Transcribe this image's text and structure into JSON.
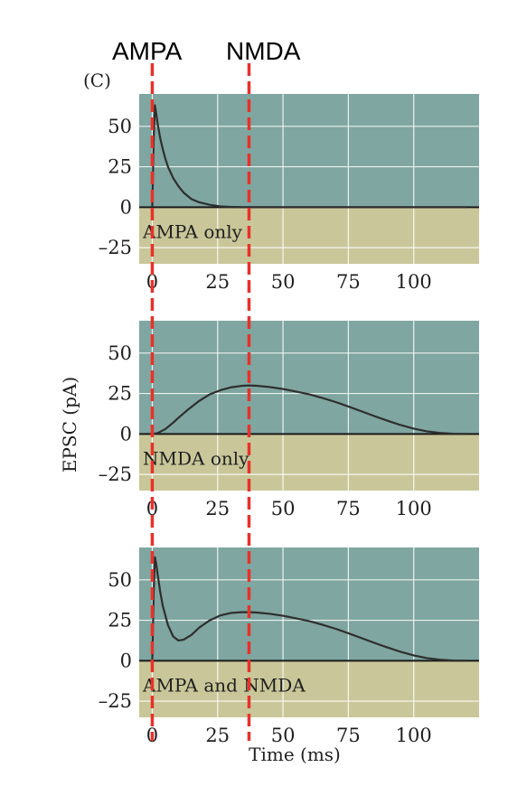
{
  "figure_label": "(C)",
  "top_labels": {
    "ampa": "AMPA",
    "nmda": "NMDA"
  },
  "y_axis_label": "EPSC (pA)",
  "x_axis_label": "Time (ms)",
  "colors": {
    "upper_bg": "#7fa6a0",
    "lower_bg": "#c9c799",
    "trace": "#2e2e2e",
    "grid": "#ffffff",
    "marker": "#e8312a"
  },
  "marker_lines_ms": [
    0,
    37
  ],
  "chart_data": [
    {
      "type": "line",
      "panel_label": "AMPA only",
      "x_ticks": [
        "0",
        "25",
        "50",
        "75",
        "100"
      ],
      "y_ticks": [
        "50",
        "25",
        "0",
        "–25"
      ],
      "xlim": [
        -5,
        125
      ],
      "ylim": [
        -35,
        70
      ],
      "x": [
        0,
        0.5,
        1,
        1.5,
        2,
        3,
        4,
        5,
        6,
        8,
        10,
        12,
        15,
        18,
        22,
        26,
        30,
        35,
        40,
        50,
        60,
        80,
        100,
        120
      ],
      "y": [
        0,
        40,
        63,
        58,
        52,
        43,
        36,
        30,
        25,
        18,
        13,
        9,
        5,
        3,
        1.5,
        0.5,
        0.2,
        0,
        0,
        0,
        0,
        0,
        0,
        0
      ]
    },
    {
      "type": "line",
      "panel_label": "NMDA only",
      "x_ticks": [
        "0",
        "25",
        "50",
        "75",
        "100"
      ],
      "y_ticks": [
        "50",
        "25",
        "0",
        "–25"
      ],
      "xlim": [
        -5,
        125
      ],
      "ylim": [
        -35,
        70
      ],
      "x": [
        0,
        2,
        5,
        8,
        10,
        14,
        18,
        22,
        26,
        30,
        34,
        37,
        40,
        45,
        50,
        55,
        60,
        65,
        70,
        75,
        80,
        85,
        90,
        95,
        100,
        105,
        110,
        115,
        120
      ],
      "y": [
        0,
        0.5,
        3,
        7,
        10,
        15.5,
        20.5,
        24.5,
        27,
        28.8,
        29.7,
        30,
        29.8,
        29,
        27.8,
        26.2,
        24.5,
        22.3,
        19.8,
        17,
        14,
        11,
        8.2,
        5.5,
        3.3,
        1.6,
        0.6,
        0.1,
        0
      ]
    },
    {
      "type": "line",
      "panel_label": "AMPA and NMDA",
      "x_ticks": [
        "0",
        "25",
        "50",
        "75",
        "100"
      ],
      "y_ticks": [
        "50",
        "25",
        "0",
        "–25"
      ],
      "xlim": [
        -5,
        125
      ],
      "ylim": [
        -35,
        70
      ],
      "x": [
        0,
        0.5,
        1,
        1.5,
        2,
        3,
        4,
        6,
        8,
        10,
        12,
        15,
        18,
        22,
        26,
        30,
        34,
        37,
        40,
        45,
        50,
        55,
        60,
        65,
        70,
        75,
        80,
        85,
        90,
        95,
        100,
        105,
        110,
        115,
        120
      ],
      "y": [
        0,
        40,
        64,
        60,
        54,
        43,
        34,
        22,
        15,
        12.5,
        13,
        16,
        20.5,
        25,
        28,
        29.5,
        30,
        30,
        29.8,
        29,
        27.8,
        26.2,
        24.5,
        22.3,
        19.8,
        17,
        14,
        11,
        8.2,
        5.5,
        3.3,
        1.6,
        0.6,
        0.1,
        0
      ]
    }
  ]
}
